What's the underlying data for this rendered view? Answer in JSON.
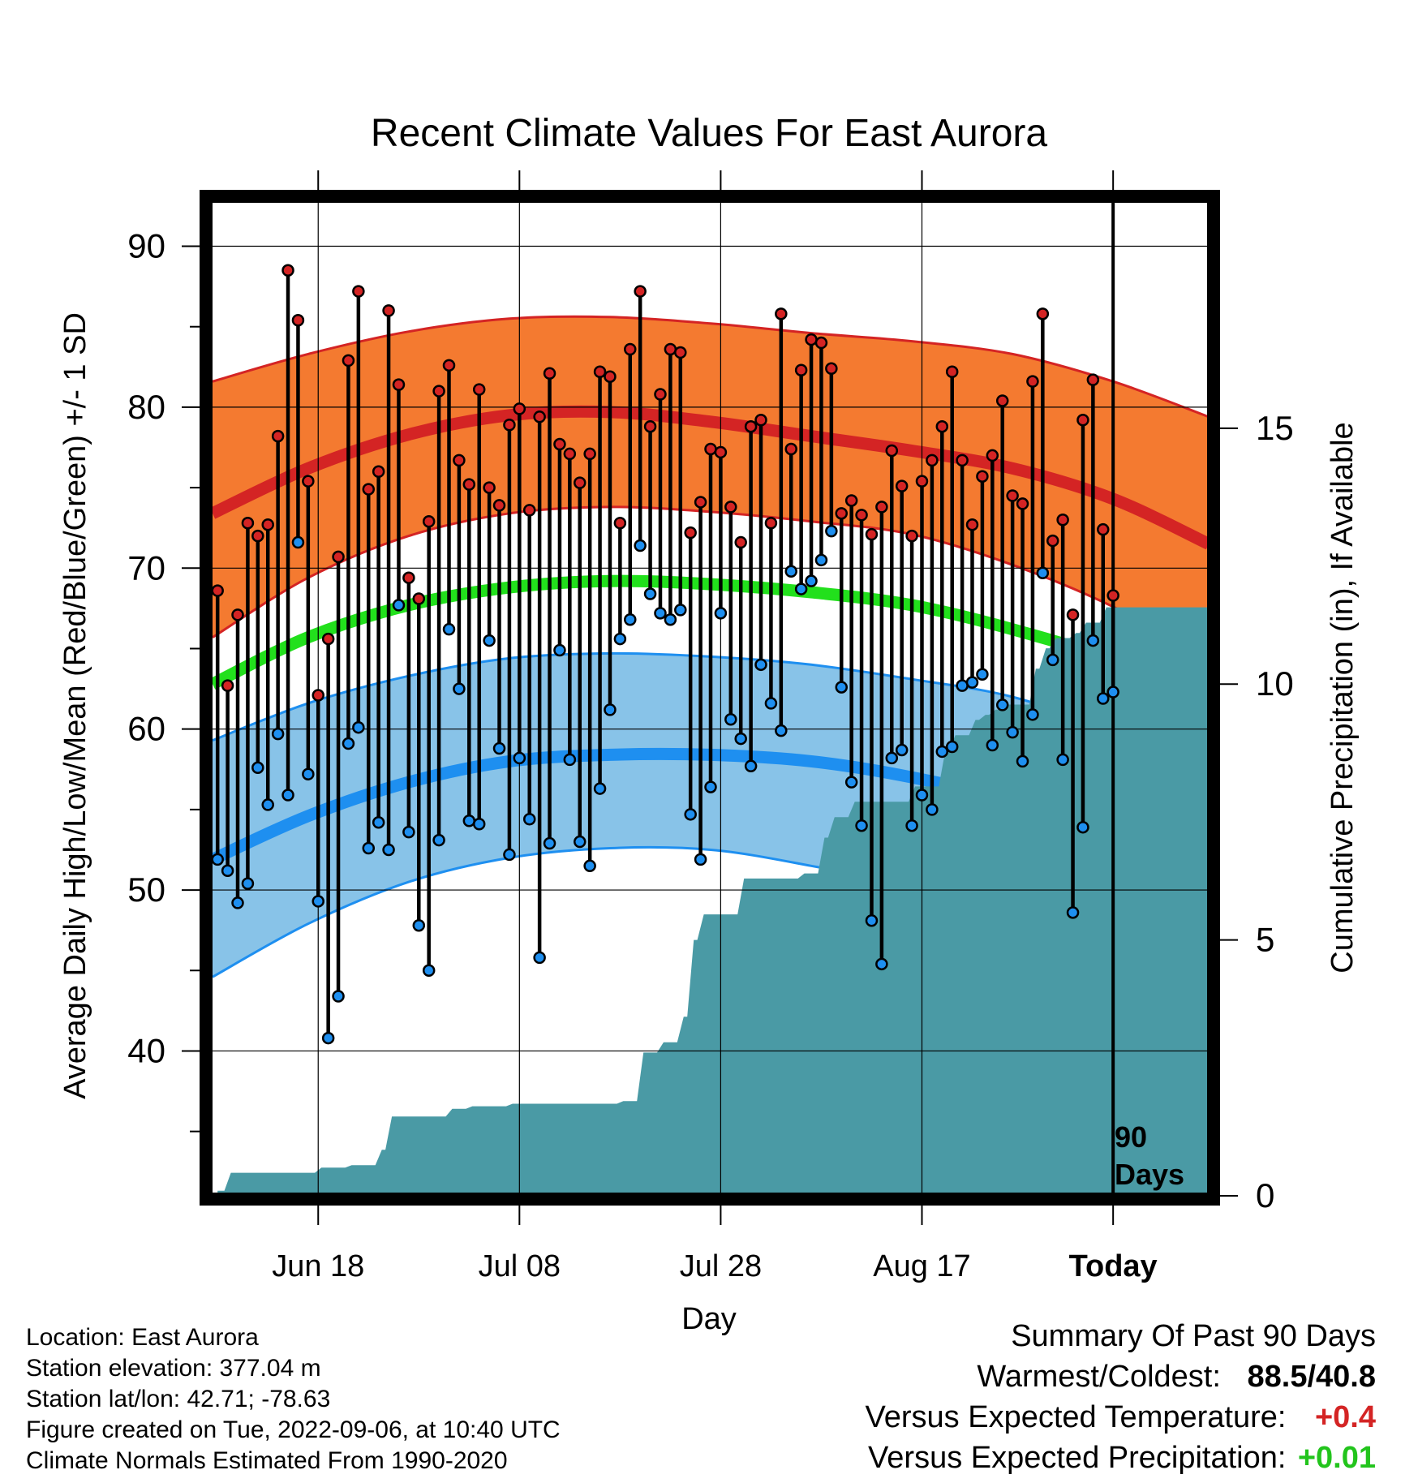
{
  "chart_data": {
    "type": "line",
    "title": "Recent Climate Values For East Aurora",
    "xlabel": "Day",
    "ylabel_left": "Average Daily High/Low/Mean (Red/Blue/Green) +/- 1 SD",
    "ylabel_right": "Cumulative Precipitation (in), If Available",
    "ylim_left": [
      31,
      93
    ],
    "ylim_right": [
      0,
      19.5
    ],
    "left_ticks": [
      40,
      50,
      60,
      70,
      80,
      90
    ],
    "right_ticks": [
      0,
      5,
      10,
      15
    ],
    "xlim_days": [
      -89.5,
      9.5
    ],
    "x_ticks": [
      {
        "day": -79,
        "label": "Jun 18"
      },
      {
        "day": -59,
        "label": "Jul 08"
      },
      {
        "day": -39,
        "label": "Jul 28"
      },
      {
        "day": -19,
        "label": "Aug 17"
      },
      {
        "day": 0,
        "label": "Today"
      }
    ],
    "period_label": [
      "90",
      "Days"
    ],
    "colors": {
      "high_band": "#F47A30",
      "high_line": "#D42424",
      "low_band": "#88C3E8",
      "low_line": "#1E8FF0",
      "mean_line": "#22E01C",
      "precip": "#4A9AA5",
      "high_dot": "#D42424",
      "low_dot": "#1E8FF0"
    },
    "normals": {
      "day": [
        -89.5,
        -80,
        -70,
        -60,
        -50,
        -40,
        -30,
        -20,
        -10,
        0,
        9.5
      ],
      "normal_high": [
        73.4,
        76.2,
        78.3,
        79.5,
        79.7,
        79.1,
        78.2,
        77.3,
        76.2,
        74.3,
        71.5
      ],
      "normal_high_upper": [
        81.6,
        83.3,
        84.7,
        85.5,
        85.6,
        85.2,
        84.6,
        84.1,
        83.3,
        81.6,
        79.4
      ],
      "normal_high_lower": [
        65.7,
        69.4,
        72.0,
        73.4,
        73.8,
        73.5,
        72.9,
        72.1,
        70.2,
        67.6,
        64.3
      ],
      "normal_low": [
        51.9,
        54.6,
        56.7,
        58.0,
        58.4,
        58.4,
        58.0,
        57.0,
        55.5,
        53.0,
        50.0
      ],
      "normal_low_upper": [
        59.3,
        61.6,
        63.3,
        64.4,
        64.7,
        64.5,
        64.0,
        63.1,
        62.0,
        59.9,
        57.6
      ],
      "normal_low_lower": [
        44.6,
        47.9,
        50.5,
        52.0,
        52.6,
        52.5,
        51.5,
        50.2,
        48.0,
        45.0,
        42.0
      ],
      "normal_mean": [
        62.8,
        65.7,
        67.7,
        68.8,
        69.2,
        69.0,
        68.5,
        67.7,
        66.2,
        64.2,
        61.0
      ]
    },
    "series": [
      {
        "name": "High",
        "values": [
          68.6,
          62.7,
          67.1,
          72.8,
          72.0,
          72.7,
          78.2,
          88.5,
          85.4,
          75.4,
          62.1,
          65.6,
          70.7,
          82.9,
          87.2,
          74.9,
          76.0,
          86.0,
          81.4,
          69.4,
          68.1,
          72.9,
          81.0,
          82.6,
          76.7,
          75.2,
          81.1,
          75.0,
          73.9,
          78.9,
          79.9,
          73.6,
          79.4,
          82.1,
          77.7,
          77.1,
          75.3,
          77.1,
          82.2,
          81.9,
          72.8,
          83.6,
          87.2,
          78.8,
          80.8,
          83.6,
          83.4,
          72.2,
          74.1,
          77.4,
          77.2,
          73.8,
          71.6,
          78.8,
          79.2,
          72.8,
          85.8,
          77.4,
          82.3,
          84.2,
          84.0,
          82.4,
          73.4,
          74.2,
          73.3,
          72.1,
          73.8,
          77.3,
          75.1,
          72.0,
          75.4,
          76.7,
          78.8,
          82.2,
          76.7,
          72.7,
          75.7,
          77.0,
          80.4,
          74.5,
          74.0,
          81.6,
          85.8,
          71.7,
          73.0,
          67.1,
          79.2,
          81.7,
          72.4,
          68.3
        ]
      },
      {
        "name": "Low",
        "values": [
          51.9,
          51.2,
          49.2,
          50.4,
          57.6,
          55.3,
          59.7,
          55.9,
          71.6,
          57.2,
          49.3,
          40.8,
          43.4,
          59.1,
          60.1,
          52.6,
          54.2,
          52.5,
          67.7,
          53.6,
          47.8,
          45.0,
          53.1,
          66.2,
          62.5,
          54.3,
          54.1,
          65.5,
          58.8,
          52.2,
          58.2,
          54.4,
          45.8,
          52.9,
          64.9,
          58.1,
          53.0,
          51.5,
          56.3,
          61.2,
          65.6,
          66.8,
          71.4,
          68.4,
          67.2,
          66.8,
          67.4,
          54.7,
          51.9,
          56.4,
          67.2,
          60.6,
          59.4,
          57.7,
          64.0,
          61.6,
          59.9,
          69.8,
          68.7,
          69.2,
          70.5,
          72.3,
          62.6,
          56.7,
          54.0,
          48.1,
          45.4,
          58.2,
          58.7,
          54.0,
          55.9,
          55.0,
          58.6,
          58.9,
          62.7,
          62.9,
          63.4,
          59.0,
          61.5,
          59.8,
          58.0,
          60.9,
          69.7,
          64.3,
          58.1,
          48.6,
          53.9,
          65.5,
          61.9,
          62.3
        ]
      },
      {
        "name": "Cumulative Precipitation",
        "x": [
          -89,
          -88,
          -79,
          -76,
          -73,
          -72,
          -66,
          -64,
          -60,
          -55,
          -49,
          -47,
          -45,
          -43,
          -42,
          -41,
          -37,
          -32,
          -31,
          -29,
          -28,
          -26,
          -25,
          -20,
          -17,
          -16,
          -14,
          -13,
          -12,
          -11,
          -8,
          -7,
          -6,
          -4,
          -3,
          -1,
          0
        ],
        "values": [
          0.1,
          0.45,
          0.55,
          0.6,
          0.9,
          1.55,
          1.7,
          1.75,
          1.8,
          1.8,
          1.85,
          2.8,
          3.0,
          3.5,
          5.0,
          5.5,
          6.2,
          6.2,
          6.3,
          7.0,
          7.4,
          7.7,
          7.7,
          8.0,
          8.7,
          9.0,
          9.3,
          9.4,
          9.5,
          9.6,
          10.3,
          10.7,
          10.9,
          11.0,
          11.2,
          11.5,
          11.5
        ]
      }
    ]
  },
  "info": {
    "location": "Location: East Aurora",
    "elevation": "Station elevation: 377.04 m",
    "latlon": "Station lat/lon: 42.71; -78.63",
    "created": "Figure created on Tue, 2022-09-06, at 10:40 UTC",
    "normals": "Climate Normals Estimated From 1990-2020"
  },
  "summary": {
    "title": "Summary Of Past 90 Days",
    "warmest_label": "Warmest/Coldest:",
    "warmest_value": "88.5",
    "slash": "/",
    "coldest_value": "40.8",
    "temp_label": "Versus Expected Temperature:",
    "temp_value": "+0.4",
    "temp_color": "#D42424",
    "precip_label": "Versus Expected Precipitation:",
    "precip_value": "+0.01",
    "precip_color": "#22C41C"
  }
}
